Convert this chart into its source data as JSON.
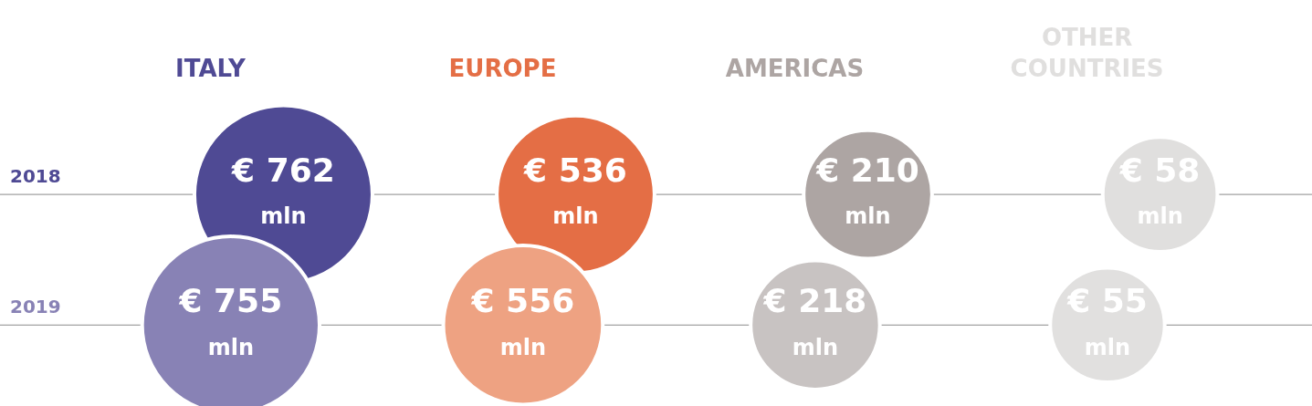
{
  "chart_data": {
    "type": "other",
    "categories": [
      "ITALY",
      "EUROPE",
      "AMERICAS",
      "OTHER COUNTRIES"
    ],
    "series": [
      {
        "name": "2018",
        "colors": [
          "#4f4a94",
          "#e46e45",
          "#ada5a3",
          "#e0dfde"
        ],
        "values": [
          762,
          536,
          210,
          58
        ],
        "value_labels": [
          "€ 762 mln",
          "€ 536 mln",
          "€ 210 mln",
          "€ 58 mln"
        ]
      },
      {
        "name": "2019",
        "colors": [
          "#8882b5",
          "#eea282",
          "#c8c3c2",
          "#e1e0df"
        ],
        "values": [
          755,
          556,
          218,
          55
        ],
        "value_labels": [
          "€ 755 mln",
          "€ 556 mln",
          "€ 218 mln",
          "€ 55 mln"
        ]
      }
    ],
    "legend": false
  }
}
